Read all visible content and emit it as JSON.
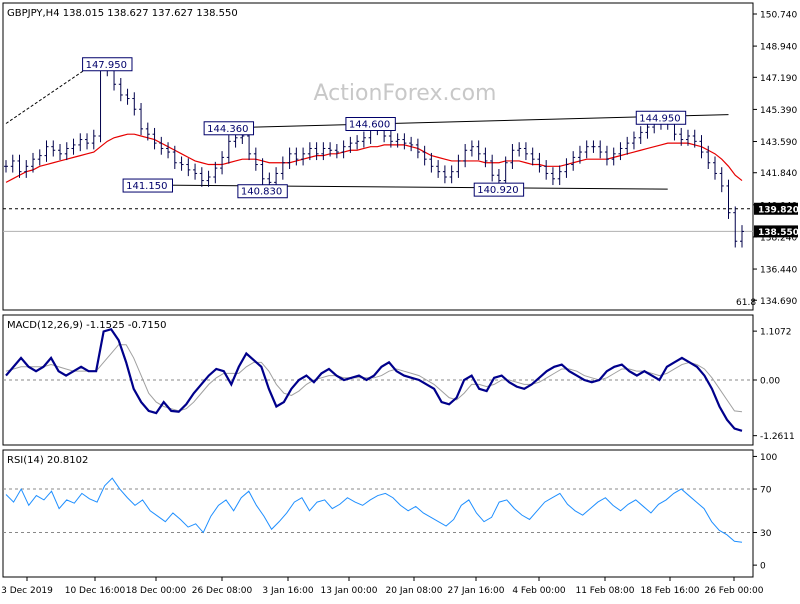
{
  "chart_data": [
    {
      "type": "line",
      "panel": "price",
      "title": "GBPJPY,H4  138.015 138.627 137.627 138.550",
      "watermark": "ActionForex.com",
      "y_ticks": [
        150.74,
        148.94,
        147.19,
        145.39,
        143.59,
        141.84,
        140.04,
        138.24,
        136.44,
        134.69
      ],
      "y_tick_labels": [
        "150.740",
        "148.940",
        "147.190",
        "145.390",
        "143.590",
        "141.840",
        "140.040",
        "138.240",
        "136.440",
        "134.690"
      ],
      "ylim": [
        134.2,
        151.3
      ],
      "price_series": [
        142.2,
        142.5,
        141.9,
        142.2,
        142.6,
        142.8,
        143.3,
        143.1,
        142.9,
        143.2,
        143.4,
        143.7,
        143.5,
        143.9,
        147.6,
        147.8,
        146.8,
        146.2,
        146.0,
        145.4,
        144.3,
        144.0,
        143.5,
        143.2,
        143.0,
        142.4,
        142.3,
        142.0,
        141.8,
        141.4,
        141.6,
        142.1,
        142.7,
        143.6,
        143.8,
        143.9,
        142.9,
        142.3,
        141.5,
        141.3,
        141.8,
        142.4,
        142.9,
        142.6,
        142.9,
        143.2,
        142.9,
        143.2,
        143.1,
        143.0,
        143.3,
        143.5,
        143.6,
        143.8,
        144.4,
        144.3,
        143.9,
        143.6,
        143.7,
        143.5,
        143.4,
        143.0,
        142.6,
        142.2,
        141.9,
        141.6,
        141.9,
        142.5,
        143.1,
        143.3,
        142.9,
        142.5,
        141.7,
        141.4,
        142.4,
        143.1,
        143.2,
        142.9,
        142.6,
        142.2,
        141.8,
        141.5,
        141.9,
        142.3,
        142.7,
        143.0,
        143.3,
        143.3,
        143.0,
        142.6,
        142.9,
        143.2,
        143.5,
        143.8,
        144.1,
        144.4,
        144.6,
        144.9,
        144.6,
        144.0,
        143.7,
        143.9,
        143.6,
        143.0,
        142.4,
        141.8,
        141.1,
        139.6,
        138.0,
        138.55
      ],
      "ma_series": [
        141.3,
        141.5,
        141.7,
        141.9,
        142.0,
        142.2,
        142.3,
        142.4,
        142.5,
        142.6,
        142.7,
        142.8,
        142.9,
        143.0,
        143.3,
        143.6,
        143.8,
        143.9,
        144.0,
        144.0,
        143.9,
        143.8,
        143.7,
        143.5,
        143.3,
        143.1,
        142.9,
        142.7,
        142.5,
        142.4,
        142.3,
        142.3,
        142.3,
        142.4,
        142.5,
        142.6,
        142.6,
        142.6,
        142.5,
        142.4,
        142.4,
        142.4,
        142.4,
        142.5,
        142.6,
        142.7,
        142.8,
        142.8,
        142.9,
        142.9,
        143.0,
        143.1,
        143.1,
        143.2,
        143.3,
        143.3,
        143.4,
        143.4,
        143.4,
        143.4,
        143.3,
        143.2,
        143.0,
        142.8,
        142.7,
        142.6,
        142.5,
        142.5,
        142.5,
        142.5,
        142.5,
        142.4,
        142.4,
        142.4,
        142.5,
        142.5,
        142.5,
        142.4,
        142.3,
        142.3,
        142.2,
        142.2,
        142.2,
        142.3,
        142.4,
        142.5,
        142.6,
        142.6,
        142.6,
        142.6,
        142.7,
        142.8,
        142.9,
        143.0,
        143.1,
        143.2,
        143.3,
        143.4,
        143.5,
        143.5,
        143.5,
        143.5,
        143.4,
        143.3,
        143.1,
        142.9,
        142.6,
        142.2,
        141.7,
        141.4
      ],
      "annotations": [
        {
          "label": "147.950",
          "value": 147.95,
          "i": 15
        },
        {
          "label": "144.360",
          "value": 144.36,
          "i": 33
        },
        {
          "label": "141.150",
          "value": 141.15,
          "i": 21
        },
        {
          "label": "140.830",
          "value": 140.83,
          "i": 38
        },
        {
          "label": "144.600",
          "value": 144.6,
          "i": 54
        },
        {
          "label": "140.920",
          "value": 140.92,
          "i": 73
        },
        {
          "label": "144.950",
          "value": 144.95,
          "i": 97
        }
      ],
      "price_labels": [
        {
          "label": "139.820",
          "value": 139.82,
          "style": "dashed"
        },
        {
          "label": "138.550",
          "value": 138.55,
          "style": "solid"
        }
      ],
      "fib_label": "61.8",
      "colors": {
        "price": "#00004a",
        "ma": "#e60000",
        "trendline": "#000000"
      }
    },
    {
      "type": "line",
      "panel": "macd",
      "title": "MACD(12,26,9) -1.1525 -0.7150",
      "y_ticks": [
        1.1072,
        0.0,
        -1.2611
      ],
      "y_tick_labels": [
        "1.1072",
        "0.00",
        "-1.2611"
      ],
      "ylim": [
        -1.45,
        1.45
      ],
      "macd_series": [
        0.1,
        0.3,
        0.5,
        0.3,
        0.2,
        0.3,
        0.5,
        0.2,
        0.1,
        0.2,
        0.3,
        0.2,
        0.2,
        1.1,
        1.15,
        0.9,
        0.4,
        -0.2,
        -0.5,
        -0.7,
        -0.75,
        -0.5,
        -0.7,
        -0.72,
        -0.55,
        -0.3,
        -0.1,
        0.1,
        0.25,
        0.2,
        -0.1,
        0.3,
        0.6,
        0.45,
        0.3,
        -0.2,
        -0.6,
        -0.5,
        -0.2,
        0.0,
        0.1,
        -0.05,
        0.15,
        0.25,
        0.1,
        0.0,
        0.05,
        0.1,
        0.0,
        0.1,
        0.3,
        0.4,
        0.2,
        0.1,
        0.05,
        0.0,
        -0.1,
        -0.2,
        -0.5,
        -0.55,
        -0.4,
        0.0,
        0.1,
        -0.2,
        -0.25,
        0.05,
        0.1,
        -0.05,
        -0.15,
        -0.2,
        -0.1,
        0.05,
        0.2,
        0.3,
        0.35,
        0.2,
        0.1,
        0.0,
        -0.05,
        0.0,
        0.2,
        0.3,
        0.35,
        0.2,
        0.1,
        0.2,
        0.1,
        0.0,
        0.3,
        0.4,
        0.5,
        0.4,
        0.3,
        0.1,
        -0.2,
        -0.6,
        -0.9,
        -1.1,
        -1.15
      ],
      "signal_series": [
        0.2,
        0.25,
        0.3,
        0.3,
        0.3,
        0.3,
        0.35,
        0.3,
        0.25,
        0.2,
        0.2,
        0.2,
        0.2,
        0.4,
        0.6,
        0.8,
        0.8,
        0.5,
        0.1,
        -0.3,
        -0.5,
        -0.6,
        -0.65,
        -0.7,
        -0.65,
        -0.5,
        -0.3,
        -0.1,
        0.05,
        0.15,
        0.15,
        0.15,
        0.3,
        0.4,
        0.4,
        0.2,
        -0.1,
        -0.3,
        -0.35,
        -0.25,
        -0.1,
        0.0,
        0.05,
        0.1,
        0.1,
        0.05,
        0.05,
        0.05,
        0.05,
        0.05,
        0.1,
        0.2,
        0.25,
        0.2,
        0.15,
        0.1,
        0.0,
        -0.1,
        -0.25,
        -0.4,
        -0.45,
        -0.3,
        -0.1,
        -0.1,
        -0.15,
        -0.1,
        0.0,
        0.0,
        -0.05,
        -0.1,
        -0.1,
        -0.05,
        0.05,
        0.15,
        0.25,
        0.25,
        0.2,
        0.1,
        0.05,
        0.0,
        0.05,
        0.15,
        0.25,
        0.25,
        0.2,
        0.2,
        0.15,
        0.1,
        0.15,
        0.25,
        0.35,
        0.4,
        0.35,
        0.25,
        0.05,
        -0.2,
        -0.45,
        -0.7,
        -0.72
      ],
      "colors": {
        "macd": "#00008b",
        "signal": "#a0a0a0"
      }
    },
    {
      "type": "line",
      "panel": "rsi",
      "title": "RSI(14) 20.8102",
      "y_ticks": [
        100,
        70,
        30,
        0
      ],
      "y_tick_labels": [
        "100",
        "70",
        "30",
        "0"
      ],
      "ylim": [
        -10,
        105
      ],
      "levels": [
        70,
        30
      ],
      "rsi_series": [
        65,
        58,
        70,
        55,
        64,
        60,
        68,
        52,
        60,
        57,
        66,
        61,
        58,
        73,
        80,
        70,
        62,
        55,
        60,
        50,
        45,
        40,
        48,
        42,
        35,
        38,
        30,
        45,
        55,
        60,
        50,
        62,
        68,
        55,
        45,
        33,
        40,
        48,
        58,
        62,
        50,
        58,
        60,
        52,
        56,
        62,
        58,
        55,
        60,
        64,
        66,
        62,
        55,
        50,
        54,
        48,
        44,
        40,
        36,
        42,
        55,
        60,
        48,
        40,
        44,
        58,
        60,
        52,
        46,
        42,
        50,
        58,
        62,
        66,
        56,
        50,
        46,
        52,
        58,
        62,
        55,
        50,
        56,
        60,
        54,
        48,
        56,
        60,
        66,
        70,
        64,
        58,
        52,
        40,
        32,
        28,
        22,
        21
      ],
      "rsi_color": "#1f8fff"
    }
  ],
  "x_axis": {
    "labels": [
      "3 Dec 2019",
      "10 Dec 16:00",
      "18 Dec 00:00",
      "26 Dec 08:00",
      "3 Jan 16:00",
      "13 Jan 00:00",
      "20 Jan 08:00",
      "27 Jan 16:00",
      "4 Feb 00:00",
      "11 Feb 08:00",
      "18 Feb 16:00",
      "26 Feb 00:00"
    ]
  }
}
